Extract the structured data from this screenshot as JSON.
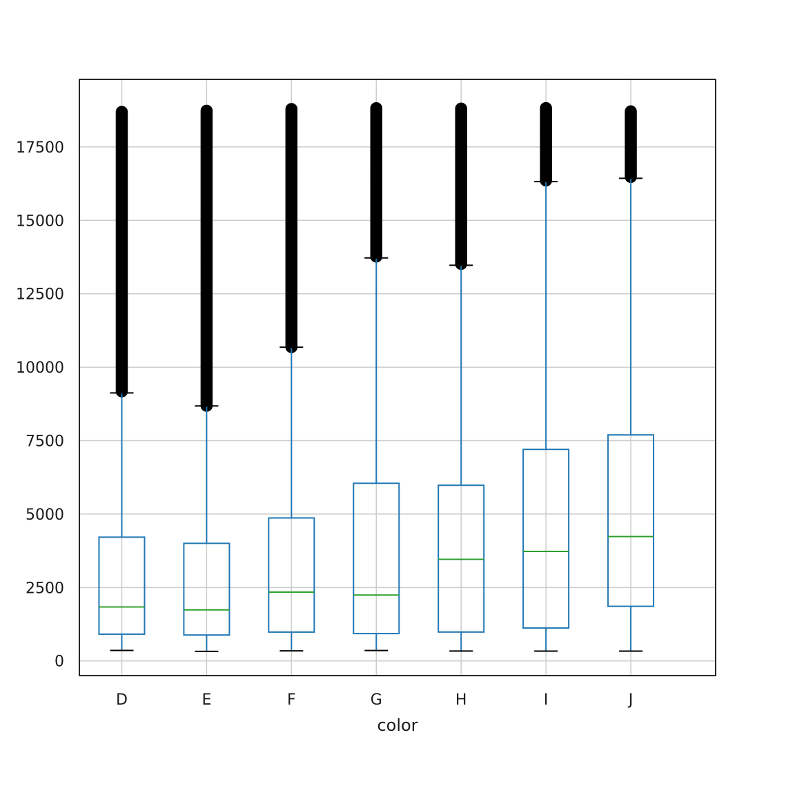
{
  "chart_data": {
    "type": "box",
    "xlabel": "color",
    "ylabel": "",
    "title": "",
    "ylim": [
      -500,
      19800
    ],
    "yticks": [
      0,
      2500,
      5000,
      7500,
      10000,
      12500,
      15000,
      17500
    ],
    "grid": true,
    "legend": "none",
    "categories": [
      "D",
      "E",
      "F",
      "G",
      "H",
      "I",
      "J"
    ],
    "boxes": [
      {
        "category": "D",
        "whisker_low": 357,
        "q1": 911,
        "median": 1838,
        "q3": 4214,
        "whisker_high": 9124,
        "flier_min": 9124,
        "flier_max": 18693
      },
      {
        "category": "E",
        "whisker_low": 326,
        "q1": 882,
        "median": 1739,
        "q3": 4003,
        "whisker_high": 8681,
        "flier_min": 8681,
        "flier_max": 18731
      },
      {
        "category": "F",
        "whisker_low": 342,
        "q1": 982,
        "median": 2344,
        "q3": 4868,
        "whisker_high": 10680,
        "flier_min": 10680,
        "flier_max": 18791
      },
      {
        "category": "G",
        "whisker_low": 354,
        "q1": 931,
        "median": 2242,
        "q3": 6048,
        "whisker_high": 13720,
        "flier_min": 13720,
        "flier_max": 18818
      },
      {
        "category": "H",
        "whisker_low": 337,
        "q1": 984,
        "median": 3460,
        "q3": 5980,
        "whisker_high": 13470,
        "flier_min": 13470,
        "flier_max": 18803
      },
      {
        "category": "I",
        "whisker_low": 334,
        "q1": 1120,
        "median": 3730,
        "q3": 7202,
        "whisker_high": 16320,
        "flier_min": 16320,
        "flier_max": 18823
      },
      {
        "category": "J",
        "whisker_low": 335,
        "q1": 1860,
        "median": 4234,
        "q3": 7695,
        "whisker_high": 16430,
        "flier_min": 16430,
        "flier_max": 18710
      }
    ],
    "colors": {
      "box": "#1f77b4",
      "median": "#2ca02c",
      "whisker": "#1f77b4",
      "cap": "#000000",
      "flier": "#000000",
      "grid": "#cccccc",
      "frame": "#262626"
    }
  }
}
